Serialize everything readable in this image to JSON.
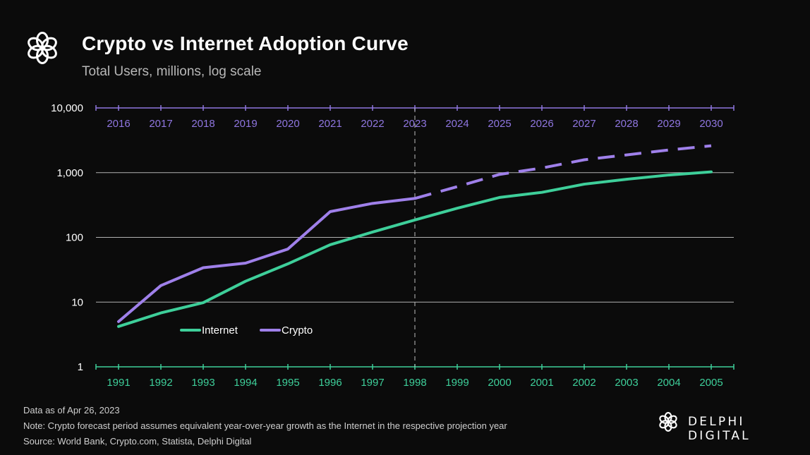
{
  "header": {
    "title": "Crypto vs Internet Adoption Curve",
    "subtitle": "Total Users, millions, log scale"
  },
  "footer": {
    "line1": "Data as of Apr 26, 2023",
    "line2": "Note: Crypto forecast period assumes equivalent year-over-year growth as the Internet in the respective projection year",
    "line3": "Source: World Bank, Crypto.com,  Statista, Delphi Digital"
  },
  "brand": {
    "name": "DELPHI DIGITAL"
  },
  "colors": {
    "internet": "#3ecf9a",
    "crypto": "#9f80ea",
    "grid": "#cfcfcf",
    "top_axis": "#8f76e0",
    "bottom_axis": "#3ecf9a",
    "background": "#0b0b0b"
  },
  "chart_data": {
    "type": "line",
    "y_scale": "log",
    "ylim": [
      1,
      10000
    ],
    "y_ticks": [
      {
        "value": 1,
        "label": "1"
      },
      {
        "value": 10,
        "label": "10"
      },
      {
        "value": 100,
        "label": "100"
      },
      {
        "value": 1000,
        "label": "1,000"
      },
      {
        "value": 10000,
        "label": "10,000"
      }
    ],
    "x_top_labels": [
      "2016",
      "2017",
      "2018",
      "2019",
      "2020",
      "2021",
      "2022",
      "2023",
      "2024",
      "2025",
      "2026",
      "2027",
      "2028",
      "2029",
      "2030"
    ],
    "x_bottom_labels": [
      "1991",
      "1992",
      "1993",
      "1994",
      "1995",
      "1996",
      "1997",
      "1998",
      "1999",
      "2000",
      "2001",
      "2002",
      "2003",
      "2004",
      "2005"
    ],
    "divider_index": 7,
    "legend_position": "bottom-left",
    "series": [
      {
        "name": "Internet",
        "axis": "bottom",
        "color": "#3ecf9a",
        "values": [
          4.2,
          6.8,
          9.8,
          21,
          39,
          77,
          121,
          186,
          282,
          414,
          496,
          664,
          790,
          920,
          1030
        ]
      },
      {
        "name": "Crypto",
        "axis": "top",
        "color": "#9f80ea",
        "values": [
          5,
          18,
          34,
          40,
          66,
          250,
          335,
          400,
          607,
          940,
          1180,
          1580,
          1880,
          2240,
          2600
        ],
        "projection_from_index": 7
      }
    ]
  }
}
